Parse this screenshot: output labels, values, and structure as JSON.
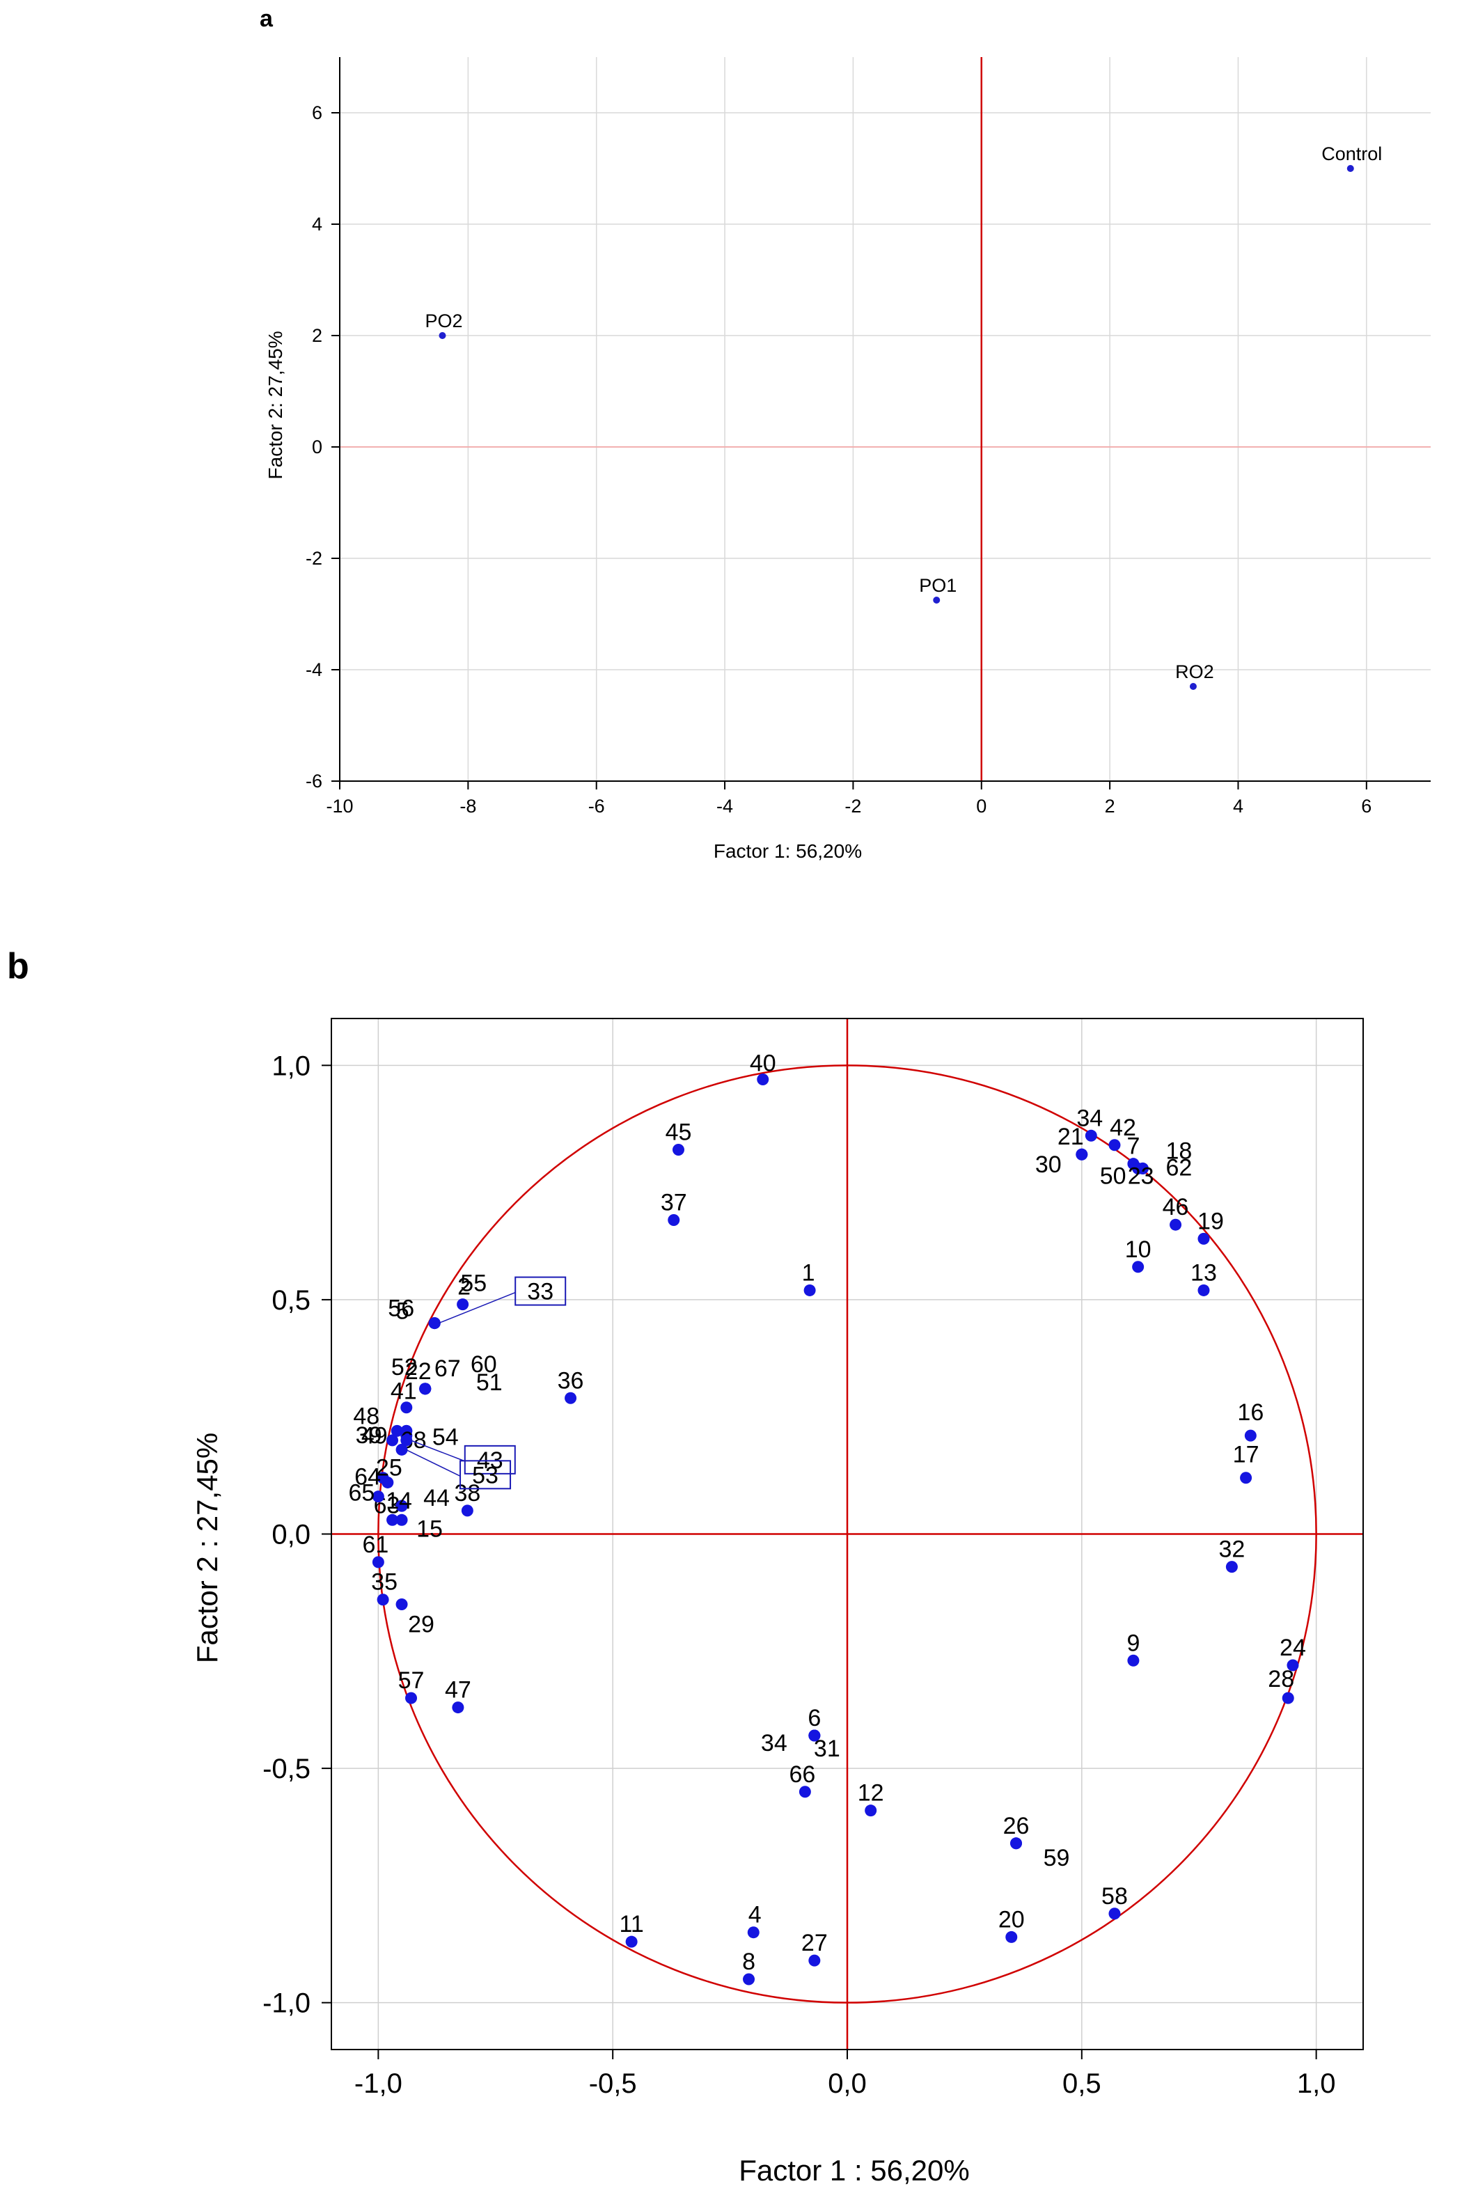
{
  "chart_data": [
    {
      "panel": "a",
      "type": "scatter",
      "xlabel": "Factor 1: 56,20%",
      "ylabel": "Factor 2: 27,45%",
      "xlim": [
        -10,
        7
      ],
      "ylim": [
        -6,
        7
      ],
      "xticks": [
        -10,
        -8,
        -6,
        -4,
        -2,
        0,
        2,
        4,
        6
      ],
      "yticks": [
        6,
        4,
        2,
        0,
        -2,
        -4,
        -6
      ],
      "grid": true,
      "points": [
        {
          "label": "Control",
          "x": 5.75,
          "y": 5.0
        },
        {
          "label": "PO2",
          "x": -8.4,
          "y": 2.0
        },
        {
          "label": "PO1",
          "x": -0.7,
          "y": -2.75
        },
        {
          "label": "RO2",
          "x": 3.3,
          "y": -4.3
        }
      ]
    },
    {
      "panel": "b",
      "type": "scatter",
      "xlabel": "Factor 1 : 56,20%",
      "ylabel": "Factor 2 : 27,45%",
      "xlim": [
        -1.1,
        1.1
      ],
      "ylim": [
        -1.1,
        1.1
      ],
      "xticks": [
        "-1,0",
        "-0,5",
        "0,0",
        "0,5",
        "1,0"
      ],
      "yticks": [
        "1,0",
        "0,5",
        "0,0",
        "-0,5",
        "-1,0"
      ],
      "grid": true,
      "unit_circle": true,
      "points": [
        {
          "label": "40",
          "x": -0.18,
          "y": 0.97
        },
        {
          "label": "45",
          "x": -0.36,
          "y": 0.82
        },
        {
          "label": "37",
          "x": -0.37,
          "y": 0.67
        },
        {
          "label": "1",
          "x": -0.08,
          "y": 0.52
        },
        {
          "label": "34",
          "x": 0.52,
          "y": 0.85
        },
        {
          "label": "42",
          "x": 0.57,
          "y": 0.83
        },
        {
          "label": "21",
          "x": 0.5,
          "y": 0.81
        },
        {
          "label": "30",
          "x": 0.5,
          "y": 0.81
        },
        {
          "label": "7",
          "x": 0.61,
          "y": 0.79
        },
        {
          "label": "18",
          "x": 0.63,
          "y": 0.78
        },
        {
          "label": "62",
          "x": 0.63,
          "y": 0.78
        },
        {
          "label": "50",
          "x": 0.62,
          "y": 0.78
        },
        {
          "label": "23",
          "x": 0.62,
          "y": 0.78
        },
        {
          "label": "46",
          "x": 0.7,
          "y": 0.66
        },
        {
          "label": "19",
          "x": 0.76,
          "y": 0.63
        },
        {
          "label": "10",
          "x": 0.62,
          "y": 0.57
        },
        {
          "label": "13",
          "x": 0.76,
          "y": 0.52
        },
        {
          "label": "16",
          "x": 0.86,
          "y": 0.21
        },
        {
          "label": "17",
          "x": 0.85,
          "y": 0.12
        },
        {
          "label": "32",
          "x": 0.82,
          "y": -0.07
        },
        {
          "label": "9",
          "x": 0.61,
          "y": -0.27
        },
        {
          "label": "24",
          "x": 0.95,
          "y": -0.28
        },
        {
          "label": "28",
          "x": 0.94,
          "y": -0.35
        },
        {
          "label": "26",
          "x": 0.36,
          "y": -0.66
        },
        {
          "label": "59",
          "x": 0.36,
          "y": -0.66
        },
        {
          "label": "58",
          "x": 0.57,
          "y": -0.81
        },
        {
          "label": "20",
          "x": 0.35,
          "y": -0.86
        },
        {
          "label": "12",
          "x": 0.05,
          "y": -0.59
        },
        {
          "label": "6",
          "x": -0.07,
          "y": -0.43
        },
        {
          "label": "31",
          "x": -0.07,
          "y": -0.43
        },
        {
          "label": "34",
          "x": -0.07,
          "y": -0.43
        },
        {
          "label": "66",
          "x": -0.09,
          "y": -0.55
        },
        {
          "label": "4",
          "x": -0.2,
          "y": -0.85
        },
        {
          "label": "8",
          "x": -0.21,
          "y": -0.95
        },
        {
          "label": "27",
          "x": -0.07,
          "y": -0.91
        },
        {
          "label": "11",
          "x": -0.46,
          "y": -0.87
        },
        {
          "label": "57",
          "x": -0.93,
          "y": -0.35
        },
        {
          "label": "47",
          "x": -0.83,
          "y": -0.37
        },
        {
          "label": "29",
          "x": -0.95,
          "y": -0.15
        },
        {
          "label": "35",
          "x": -0.99,
          "y": -0.14
        },
        {
          "label": "61",
          "x": -1.0,
          "y": -0.06
        },
        {
          "label": "15",
          "x": -0.95,
          "y": 0.03
        },
        {
          "label": "63",
          "x": -0.97,
          "y": 0.03
        },
        {
          "label": "38",
          "x": -0.81,
          "y": 0.05
        },
        {
          "label": "44",
          "x": -0.95,
          "y": 0.06
        },
        {
          "label": "14",
          "x": -0.95,
          "y": 0.06
        },
        {
          "label": "65",
          "x": -1.0,
          "y": 0.08
        },
        {
          "label": "64",
          "x": -0.99,
          "y": 0.12
        },
        {
          "label": "25",
          "x": -0.98,
          "y": 0.11
        },
        {
          "label": "39",
          "x": -0.97,
          "y": 0.2
        },
        {
          "label": "48",
          "x": -0.96,
          "y": 0.22
        },
        {
          "label": "41",
          "x": -0.94,
          "y": 0.27
        },
        {
          "label": "49",
          "x": -0.94,
          "y": 0.22
        },
        {
          "label": "54",
          "x": -0.94,
          "y": 0.22
        },
        {
          "label": "68",
          "x": -0.94,
          "y": 0.21
        },
        {
          "label": "43",
          "x": -0.94,
          "y": 0.2
        },
        {
          "label": "53",
          "x": -0.95,
          "y": 0.18
        },
        {
          "label": "52",
          "x": -0.9,
          "y": 0.31
        },
        {
          "label": "22",
          "x": -0.9,
          "y": 0.31
        },
        {
          "label": "67",
          "x": -0.9,
          "y": 0.31
        },
        {
          "label": "51",
          "x": -0.9,
          "y": 0.31
        },
        {
          "label": "60",
          "x": -0.9,
          "y": 0.31
        },
        {
          "label": "56",
          "x": -0.88,
          "y": 0.45
        },
        {
          "label": "5",
          "x": -0.88,
          "y": 0.45
        },
        {
          "label": "55",
          "x": -0.88,
          "y": 0.45
        },
        {
          "label": "2",
          "x": -0.82,
          "y": 0.49
        },
        {
          "label": "33",
          "x": -0.88,
          "y": 0.45
        },
        {
          "label": "36",
          "x": -0.59,
          "y": 0.29
        }
      ]
    }
  ],
  "panels": {
    "a": {
      "letter": "a"
    },
    "b": {
      "letter": "b"
    }
  }
}
